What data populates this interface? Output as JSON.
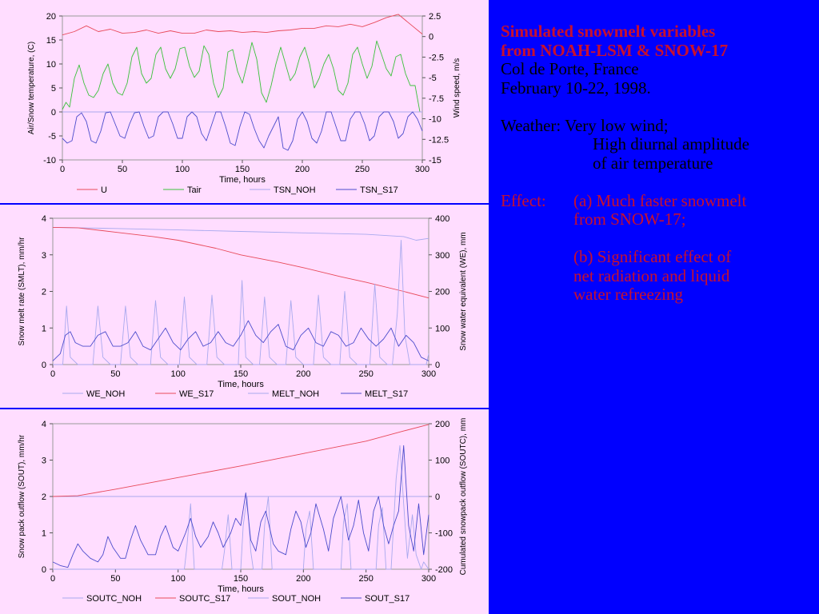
{
  "colors": {
    "background": "#0000FF",
    "panel": "#FFDDFF",
    "red": "#E8495A",
    "green": "#3CC13C",
    "blue": "#4C4CCC",
    "lightblue": "#A9A9EE",
    "title": "#C8102E"
  },
  "text": {
    "title_line1": "Simulated snowmelt variables",
    "title_line2": "from NOAH-LSM & SNOW-17",
    "location": "Col de Porte, France",
    "dates": "February 10-22, 1998.",
    "weather_label": "Weather: Very low wind;",
    "weather_line2": "High diurnal amplitude",
    "weather_line3": "of air temperature",
    "effect_label": "Effect:",
    "effect_a1": "(a) Much faster snowmelt",
    "effect_a2": "from SNOW-17;",
    "effect_b1": "(b) Significant effect of",
    "effect_b2": "net radiation and liquid",
    "effect_b3": "water refreezing"
  },
  "chart_data": [
    {
      "type": "line",
      "xlabel": "Time, hours",
      "ylabel": "Air/Snow temperature, (C)",
      "ylabel2": "Wind speed, m/s",
      "xlim": [
        0,
        300
      ],
      "ylim": [
        -10,
        20
      ],
      "ylim2": [
        -15,
        2.5
      ],
      "xticks": [
        0,
        50,
        100,
        150,
        200,
        250,
        300
      ],
      "yticks": [
        -10,
        -5,
        0,
        5,
        10,
        15,
        20
      ],
      "yticks2": [
        -15,
        -12.5,
        -10,
        -7.5,
        -5,
        -2.5,
        0,
        2.5
      ],
      "ytick2_labels": [
        "-15",
        "-12.5",
        "-10",
        "-7.5",
        "-5",
        "-2.5",
        "0",
        "2.5"
      ],
      "legend": [
        "U",
        "Tair",
        "TSN_NOH",
        "TSN_S17"
      ],
      "series": [
        {
          "name": "U",
          "axis": "right",
          "color": "red",
          "x": [
            0,
            10,
            20,
            30,
            40,
            50,
            60,
            70,
            80,
            90,
            100,
            110,
            120,
            130,
            140,
            150,
            160,
            170,
            180,
            190,
            200,
            210,
            220,
            230,
            240,
            250,
            260,
            270,
            280,
            290,
            300
          ],
          "values": [
            0.2,
            0.6,
            1.3,
            0.6,
            0.9,
            0.4,
            0.5,
            0.8,
            0.4,
            0.7,
            0.4,
            0.4,
            0.8,
            0.6,
            0.7,
            0.5,
            0.6,
            0.5,
            0.7,
            0.8,
            1.0,
            1.0,
            1.3,
            1.2,
            1.5,
            1.2,
            1.7,
            2.3,
            2.7,
            1.5,
            0.3
          ]
        },
        {
          "name": "Tair",
          "axis": "left",
          "color": "green",
          "x": [
            0,
            3,
            6,
            10,
            14,
            18,
            22,
            26,
            30,
            34,
            38,
            42,
            46,
            50,
            54,
            58,
            62,
            66,
            70,
            74,
            78,
            82,
            86,
            90,
            94,
            98,
            102,
            106,
            110,
            114,
            118,
            122,
            126,
            130,
            134,
            138,
            142,
            146,
            150,
            154,
            158,
            162,
            166,
            170,
            174,
            178,
            182,
            186,
            190,
            194,
            198,
            202,
            206,
            210,
            214,
            218,
            222,
            226,
            230,
            234,
            238,
            242,
            246,
            250,
            254,
            258,
            262,
            266,
            270,
            274,
            278,
            282,
            286,
            290,
            294,
            298
          ],
          "values": [
            0.5,
            2,
            1,
            7,
            9.8,
            6,
            3.5,
            3,
            4.5,
            8,
            10,
            6,
            4,
            3.5,
            6,
            11.5,
            13.5,
            8,
            6,
            7,
            12,
            13.5,
            9,
            7,
            9,
            13.2,
            13.5,
            9.5,
            7.2,
            8.5,
            13.8,
            12,
            6,
            3,
            5,
            12.5,
            13,
            8.5,
            6,
            10,
            14.5,
            11,
            4,
            2,
            5.5,
            10,
            13.5,
            10,
            6.5,
            8,
            11.5,
            13.5,
            10,
            5,
            7,
            10,
            12,
            9,
            4.5,
            3.5,
            6,
            12,
            13.5,
            10,
            7,
            9.5,
            14.8,
            12,
            9,
            7.5,
            11.5,
            12,
            8,
            5.5,
            5.5,
            0
          ]
        },
        {
          "name": "TSN_NOH",
          "axis": "left",
          "color": "lightblue",
          "x": [
            0,
            300
          ],
          "values": [
            0,
            0
          ]
        },
        {
          "name": "TSN_S17",
          "axis": "left",
          "color": "blue",
          "x": [
            0,
            4,
            8,
            12,
            16,
            20,
            24,
            28,
            32,
            36,
            40,
            44,
            48,
            52,
            56,
            60,
            64,
            68,
            72,
            76,
            80,
            84,
            88,
            92,
            96,
            100,
            104,
            108,
            112,
            116,
            120,
            124,
            128,
            132,
            136,
            140,
            144,
            148,
            152,
            156,
            160,
            164,
            168,
            172,
            176,
            180,
            184,
            188,
            192,
            196,
            200,
            204,
            208,
            212,
            216,
            220,
            224,
            228,
            232,
            236,
            240,
            244,
            248,
            252,
            256,
            260,
            264,
            268,
            272,
            276,
            280,
            284,
            288,
            292,
            296,
            300
          ],
          "values": [
            -5.5,
            -6.5,
            -6,
            -1,
            -0.2,
            -2,
            -6,
            -6.5,
            -4,
            -0.2,
            0,
            -2.5,
            -5,
            -5.5,
            -2.5,
            -0.2,
            0,
            -3,
            -5.5,
            -5,
            -1,
            0,
            0,
            -2.5,
            -5.5,
            -5.5,
            -1,
            0,
            -1,
            -4.5,
            -6,
            -3,
            0,
            0,
            -3,
            -6.5,
            -7,
            -3,
            0,
            -0.5,
            -3.5,
            -6,
            -7.5,
            -5,
            -3,
            -1,
            -7.5,
            -8,
            -6,
            -1.5,
            0,
            -2,
            -5.5,
            -6.5,
            -4,
            0,
            0,
            -3,
            -6,
            -6,
            -1.5,
            0,
            0,
            -2.5,
            -6,
            -5,
            -1,
            0,
            0,
            -2,
            -5.5,
            -4.5,
            -1,
            0,
            -1.5,
            -4
          ]
        }
      ]
    },
    {
      "type": "line",
      "xlabel": "Time, hours",
      "ylabel": "Snow melt rate (SMLT), mm/hr",
      "ylabel2": "Snow water equivalent (WE), mm",
      "xlim": [
        0,
        300
      ],
      "ylim": [
        0,
        4
      ],
      "ylim2": [
        0,
        400
      ],
      "xticks": [
        0,
        50,
        100,
        150,
        200,
        250,
        300
      ],
      "yticks": [
        0,
        1,
        2,
        3,
        4
      ],
      "ytick_labels": [
        "0",
        "1",
        "2",
        "3",
        "4"
      ],
      "yticks2": [
        0,
        100,
        200,
        300,
        400
      ],
      "legend": [
        "WE_NOH",
        "WE_S17",
        "MELT_NOH",
        "MELT_S17"
      ],
      "series": [
        {
          "name": "WE_NOH",
          "axis": "right",
          "color": "lightblue",
          "x": [
            0,
            50,
            100,
            150,
            200,
            250,
            280,
            290,
            300
          ],
          "values": [
            375,
            372,
            368,
            364,
            360,
            356,
            350,
            340,
            345
          ]
        },
        {
          "name": "WE_S17",
          "axis": "right",
          "color": "red",
          "x": [
            0,
            20,
            50,
            80,
            100,
            130,
            150,
            180,
            200,
            230,
            250,
            280,
            300
          ],
          "values": [
            375,
            374,
            362,
            350,
            340,
            318,
            300,
            280,
            265,
            240,
            225,
            200,
            182
          ]
        },
        {
          "name": "MELT_NOH",
          "axis": "left",
          "color": "lightblue",
          "x": [
            0,
            8,
            11,
            14,
            20,
            32,
            36,
            40,
            46,
            54,
            58,
            62,
            68,
            78,
            82,
            86,
            92,
            101,
            105,
            109,
            115,
            123,
            127,
            131,
            137,
            148,
            151,
            154,
            160,
            165,
            169,
            173,
            179,
            186,
            190,
            194,
            200,
            208,
            212,
            216,
            222,
            229,
            233,
            237,
            243,
            253,
            257,
            261,
            267,
            271,
            275,
            278,
            281,
            285,
            290,
            298,
            300
          ],
          "values": [
            0,
            0,
            1.6,
            0.2,
            0,
            0,
            1.6,
            0.2,
            0,
            0,
            1.6,
            0.2,
            0,
            0,
            1.75,
            0.2,
            0,
            0,
            1.85,
            0.2,
            0,
            0,
            1.9,
            0.2,
            0,
            0,
            2.3,
            0.2,
            0,
            0,
            1.85,
            0.2,
            0,
            0,
            1.75,
            0.2,
            0,
            0,
            1.9,
            0.2,
            0,
            0,
            2.0,
            0.2,
            0,
            0,
            2.2,
            0.2,
            0,
            0,
            1.4,
            3.4,
            0.8,
            0,
            0,
            0,
            0.3
          ]
        },
        {
          "name": "MELT_S17",
          "axis": "left",
          "color": "blue",
          "x": [
            0,
            6,
            10,
            14,
            18,
            24,
            30,
            36,
            42,
            48,
            54,
            60,
            66,
            72,
            78,
            84,
            90,
            96,
            102,
            108,
            114,
            120,
            126,
            132,
            138,
            144,
            150,
            156,
            162,
            168,
            174,
            180,
            186,
            192,
            198,
            204,
            210,
            216,
            222,
            228,
            234,
            240,
            246,
            252,
            258,
            264,
            270,
            276,
            282,
            288,
            294,
            300
          ],
          "values": [
            0.1,
            0.3,
            0.8,
            0.9,
            0.6,
            0.5,
            0.5,
            0.8,
            0.9,
            0.5,
            0.5,
            0.6,
            0.9,
            0.5,
            0.4,
            0.7,
            1.0,
            0.6,
            0.4,
            0.7,
            0.9,
            0.5,
            0.6,
            0.9,
            0.6,
            0.5,
            0.8,
            1.2,
            0.8,
            0.6,
            0.9,
            1.1,
            0.5,
            0.4,
            0.8,
            1.0,
            0.6,
            0.5,
            0.9,
            0.8,
            0.5,
            0.6,
            1.0,
            0.7,
            0.5,
            0.7,
            1.0,
            0.5,
            0.8,
            0.6,
            0.2,
            0.1
          ]
        }
      ]
    },
    {
      "type": "line",
      "xlabel": "Time, hours",
      "ylabel": "Snow pack outflow (SOUT), mm/hr",
      "ylabel2": "Cumulated snowpack outflow (SOUTC), mm",
      "xlim": [
        0,
        300
      ],
      "ylim": [
        0,
        4
      ],
      "ylim2": [
        -200,
        200
      ],
      "xticks": [
        0,
        50,
        100,
        150,
        200,
        250,
        300
      ],
      "yticks": [
        0,
        1,
        2,
        3,
        4
      ],
      "yticks2": [
        -200,
        -100,
        0,
        100,
        200
      ],
      "legend": [
        "SOUTC_NOH",
        "SOUTC_S17",
        "SOUT_NOH",
        "SOUT_S17"
      ],
      "series": [
        {
          "name": "SOUTC_NOH",
          "axis": "right",
          "color": "lightblue",
          "x": [
            0,
            100,
            150,
            200,
            250,
            290,
            300
          ],
          "values": [
            0,
            0,
            0,
            0,
            0,
            0,
            0
          ]
        },
        {
          "name": "SOUTC_S17",
          "axis": "right",
          "color": "red",
          "x": [
            0,
            20,
            50,
            100,
            150,
            200,
            250,
            280,
            300
          ],
          "values": [
            0,
            2,
            20,
            52,
            84,
            118,
            152,
            180,
            198
          ]
        },
        {
          "name": "SOUT_NOH",
          "axis": "left",
          "color": "lightblue",
          "x": [
            0,
            105,
            107,
            110,
            113,
            135,
            137,
            140,
            143,
            150,
            152,
            155,
            158,
            160,
            167,
            169,
            172,
            175,
            200,
            202,
            205,
            208,
            230,
            232,
            235,
            238,
            258,
            260,
            263,
            266,
            270,
            274,
            277,
            280,
            283,
            287,
            290,
            294,
            296,
            300
          ],
          "values": [
            0,
            0,
            0.6,
            1.8,
            0,
            0,
            0.5,
            1.5,
            0,
            0,
            1.2,
            2.0,
            0.5,
            0,
            0,
            1.2,
            2.0,
            0,
            0,
            1.1,
            1.6,
            0,
            0,
            1.3,
            1.8,
            0,
            0,
            1.2,
            1.7,
            0,
            0,
            2.5,
            3.4,
            1.8,
            0.3,
            1.5,
            0.4,
            0,
            0.2,
            0
          ]
        },
        {
          "name": "SOUT_S17",
          "axis": "left",
          "color": "blue",
          "x": [
            0,
            6,
            12,
            16,
            20,
            24,
            30,
            36,
            40,
            44,
            48,
            54,
            58,
            62,
            66,
            70,
            76,
            82,
            86,
            90,
            96,
            100,
            106,
            110,
            114,
            118,
            124,
            128,
            132,
            136,
            142,
            146,
            150,
            154,
            158,
            162,
            166,
            170,
            176,
            180,
            186,
            190,
            194,
            198,
            202,
            206,
            210,
            216,
            220,
            224,
            230,
            236,
            240,
            244,
            248,
            252,
            256,
            260,
            264,
            268,
            272,
            276,
            280,
            284,
            288,
            292,
            296,
            300
          ],
          "values": [
            0.2,
            0.1,
            0.05,
            0.4,
            0.7,
            0.5,
            0.3,
            0.2,
            0.4,
            0.9,
            0.6,
            0.3,
            0.3,
            0.8,
            1.2,
            0.8,
            0.4,
            0.4,
            0.9,
            1.2,
            0.6,
            0.5,
            1.0,
            1.4,
            0.9,
            0.6,
            0.9,
            1.3,
            1.0,
            0.6,
            1.0,
            1.4,
            1.2,
            2.1,
            0.8,
            0.5,
            1.3,
            1.6,
            0.7,
            0.5,
            0.4,
            1.1,
            1.6,
            1.3,
            0.6,
            1.0,
            1.8,
            1.1,
            0.5,
            1.4,
            2.0,
            0.8,
            1.2,
            1.9,
            1.0,
            0.5,
            1.6,
            2.0,
            1.2,
            0.7,
            1.2,
            1.6,
            3.4,
            1.2,
            0.5,
            1.8,
            0.4,
            1.5
          ]
        }
      ]
    }
  ]
}
